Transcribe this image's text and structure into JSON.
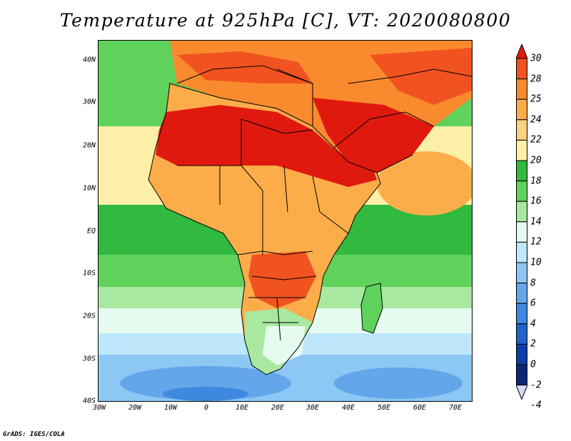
{
  "title": "Temperature at 925hPa [C], VT: 2020080800",
  "credit": "GrADS: IGES/COLA",
  "map": {
    "lat_labels": [
      "40N",
      "30N",
      "20N",
      "10N",
      "EQ",
      "10S",
      "20S",
      "30S",
      "40S"
    ],
    "lon_labels": [
      "30W",
      "20W",
      "10W",
      "0",
      "10E",
      "20E",
      "30E",
      "40E",
      "50E",
      "60E",
      "70E"
    ]
  },
  "colorbar": {
    "labels": [
      "30",
      "28",
      "25",
      "24",
      "22",
      "20",
      "18",
      "16",
      "14",
      "12",
      "10",
      "8",
      "6",
      "4",
      "2",
      "0",
      "-2",
      "-4"
    ],
    "colors": [
      "#e0190f",
      "#f0531f",
      "#fa8a2e",
      "#fcad4a",
      "#fbd27d",
      "#fdeea8",
      "#31b940",
      "#5ed25a",
      "#a8e8a0",
      "#e6fbef",
      "#bde7fb",
      "#8dc7f4",
      "#63a6ea",
      "#3f88df",
      "#1f63cc",
      "#0d3fa8",
      "#0b2778",
      "#d9d9fb"
    ]
  },
  "colors": {
    "ocean_warm": "#fdeea8",
    "ocean_mid": "#5ed25a",
    "ocean_cool": "#bde7fb",
    "ocean_cold": "#63a6ea",
    "sahara": "#e0190f",
    "land_hot": "#f0531f",
    "land_warm": "#fcad4a",
    "boundary": "#000000"
  }
}
